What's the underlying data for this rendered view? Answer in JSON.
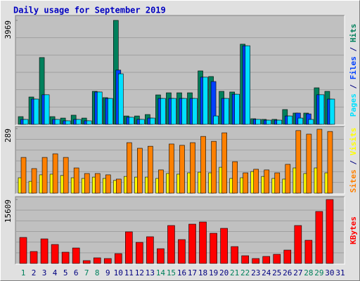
{
  "chart_data": [
    {
      "type": "bar",
      "title": "Daily usage for September 2019",
      "ylim": [
        0,
        3969
      ],
      "yticks": [
        3969
      ],
      "legend_separator": " / ",
      "series": [
        {
          "name": "Hits",
          "color": "#00805c",
          "values": [
            295,
            1045,
            2550,
            295,
            240,
            350,
            240,
            1260,
            1020,
            3969,
            320,
            320,
            375,
            1125,
            1205,
            1205,
            1205,
            2040,
            1825,
            1260,
            1235,
            3060,
            215,
            190,
            190,
            565,
            430,
            430,
            1395,
            1260,
            0
          ]
        },
        {
          "name": "Files",
          "color": "#0040ff",
          "values": [
            188,
            965,
            1130,
            188,
            135,
            188,
            135,
            1235,
            990,
            2070,
            270,
            190,
            240,
            990,
            990,
            990,
            990,
            1800,
            1635,
            990,
            1150,
            3000,
            190,
            160,
            160,
            320,
            430,
            400,
            1130,
            965,
            0
          ]
        },
        {
          "name": "Pages",
          "color": "#00e0ff",
          "values": [
            188,
            965,
            1130,
            188,
            135,
            188,
            135,
            1235,
            990,
            1930,
            270,
            190,
            240,
            990,
            990,
            990,
            990,
            1800,
            320,
            990,
            1150,
            3000,
            190,
            160,
            160,
            320,
            240,
            188,
            1130,
            965,
            0
          ]
        }
      ]
    },
    {
      "type": "bar",
      "ylim": [
        0,
        289
      ],
      "yticks": [
        289
      ],
      "legend_separator": " / ",
      "series": [
        {
          "name": "Visits",
          "color": "#ffff00",
          "values": [
            69,
            53,
            82,
            85,
            79,
            69,
            66,
            72,
            66,
            57,
            75,
            72,
            72,
            66,
            88,
            85,
            91,
            94,
            91,
            116,
            66,
            69,
            97,
            75,
            66,
            63,
            113,
            88,
            113,
            91,
            0
          ]
        },
        {
          "name": "Sites",
          "color": "#ff8000",
          "values": [
            160,
            110,
            160,
            176,
            160,
            113,
            88,
            88,
            82,
            63,
            226,
            201,
            210,
            104,
            220,
            214,
            226,
            254,
            232,
            270,
            141,
            91,
            107,
            104,
            91,
            129,
            280,
            264,
            286,
            276,
            0
          ]
        }
      ]
    },
    {
      "type": "bar",
      "ylim": [
        0,
        15609
      ],
      "yticks": [
        15609
      ],
      "categories": [
        "1",
        "2",
        "3",
        "4",
        "5",
        "6",
        "7",
        "8",
        "9",
        "10",
        "11",
        "12",
        "13",
        "14",
        "15",
        "16",
        "17",
        "18",
        "19",
        "20",
        "21",
        "22",
        "23",
        "24",
        "25",
        "26",
        "27",
        "28",
        "29",
        "30",
        "31"
      ],
      "category_colors": [
        "#00805c",
        "#000080",
        "#000080",
        "#000080",
        "#000080",
        "#000080",
        "#00805c",
        "#00805c",
        "#000080",
        "#000080",
        "#000080",
        "#000080",
        "#000080",
        "#00805c",
        "#00805c",
        "#000080",
        "#000080",
        "#000080",
        "#000080",
        "#000080",
        "#00805c",
        "#00805c",
        "#000080",
        "#000080",
        "#000080",
        "#000080",
        "#000080",
        "#00805c",
        "#00805c",
        "#000080",
        "#000080"
      ],
      "series": [
        {
          "name": "KBytes",
          "color": "#ff0000",
          "values": [
            6350,
            2915,
            6000,
            4630,
            2745,
            3775,
            690,
            1370,
            1200,
            2400,
            7720,
            5145,
            6520,
            3600,
            9260,
            5830,
            9600,
            10120,
            7375,
            8575,
            4115,
            1885,
            1200,
            1715,
            2230,
            3260,
            9260,
            5660,
            12690,
            15609,
            0
          ]
        }
      ]
    }
  ]
}
